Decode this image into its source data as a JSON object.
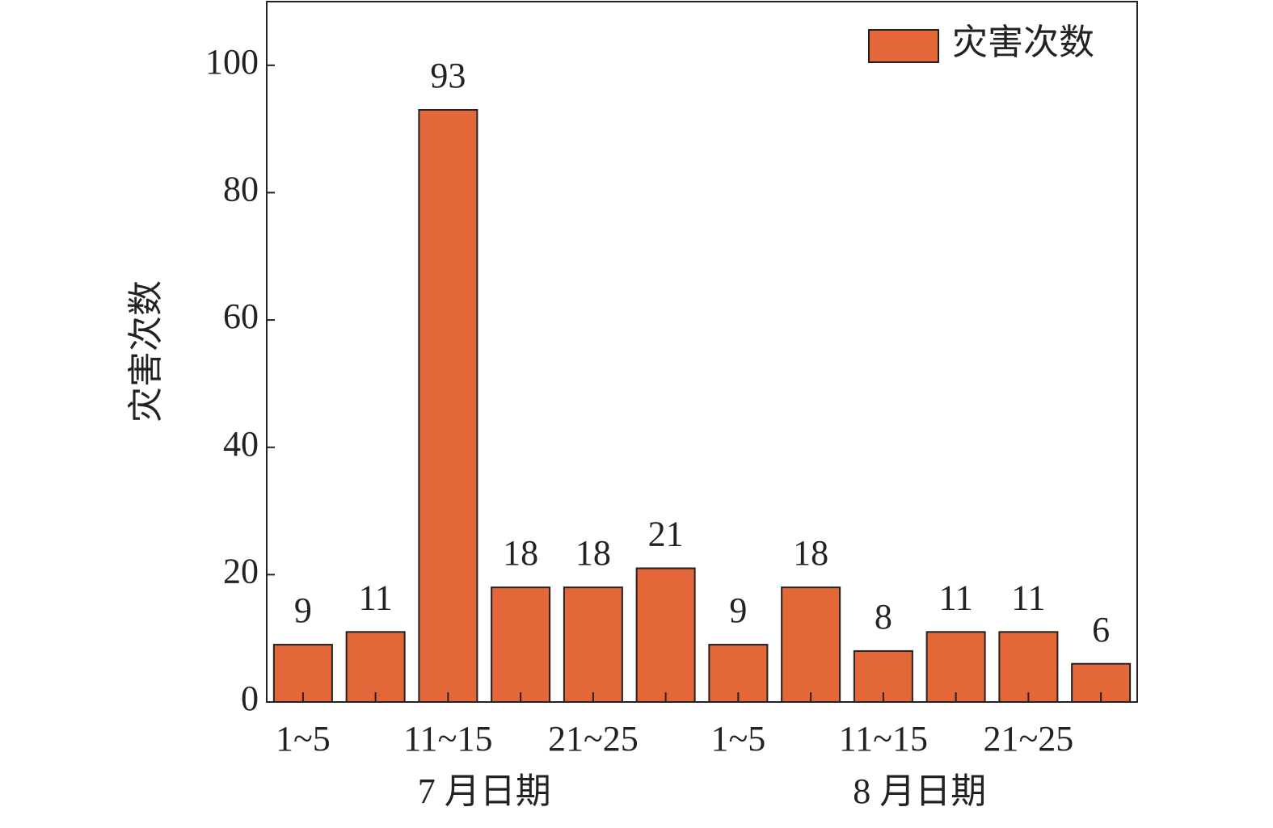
{
  "chart_data": {
    "type": "bar",
    "y_label": "灾害次数",
    "categories": [
      "1~5",
      null,
      "11~15",
      null,
      "21~25",
      null,
      "1~5",
      null,
      "11~15",
      null,
      "21~25",
      null
    ],
    "x_group_labels": [
      "7 月日期",
      "8 月日期"
    ],
    "series": [
      {
        "name": "灾害次数",
        "color": "#e4673a",
        "values": [
          9,
          11,
          93,
          18,
          18,
          21,
          9,
          18,
          8,
          11,
          11,
          6
        ]
      }
    ],
    "ylim": [
      0,
      110
    ],
    "yticks": [
      0,
      20,
      40,
      60,
      80,
      100
    ],
    "grid": false,
    "legend": "top-right"
  }
}
